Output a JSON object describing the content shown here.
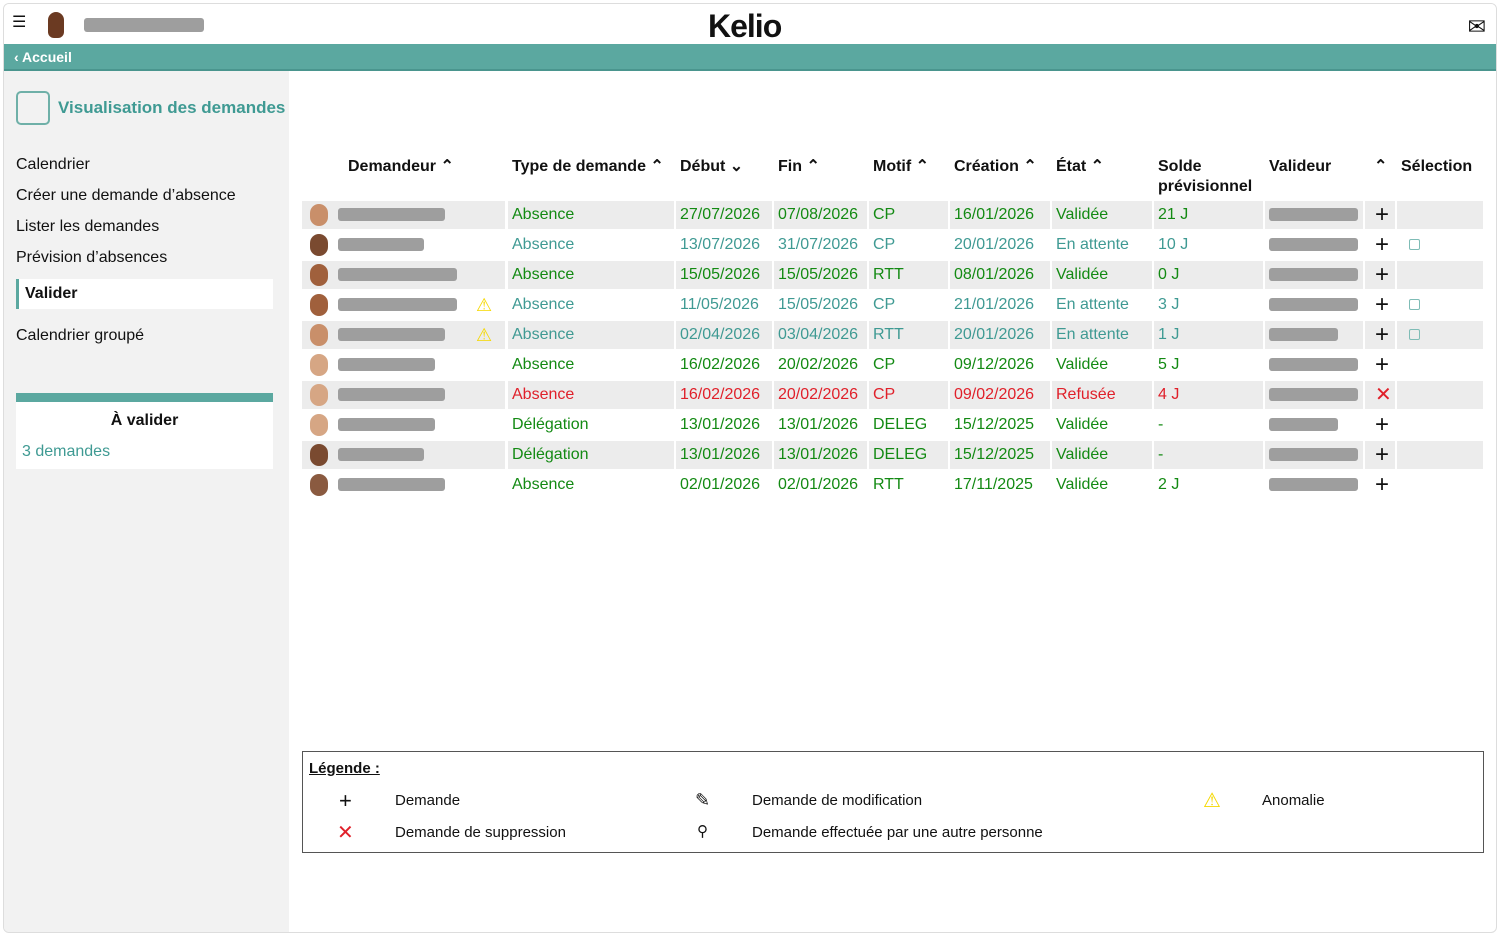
{
  "header": {
    "logo": "Kelio",
    "nav_back": "‹ Accueil"
  },
  "sidebar": {
    "title": "Visualisation des demandes",
    "items": [
      "Calendrier",
      "Créer une demande d’absence",
      "Lister les demandes",
      "Prévision d’absences",
      "Valider",
      "Calendrier groupé"
    ],
    "active": "Valider",
    "box_title": "À valider",
    "box_link": "3 demandes"
  },
  "table": {
    "headers": {
      "demandeur": "Demandeur ⌃",
      "type": "Type de demande ⌃",
      "debut": "Début ⌄",
      "fin": "Fin ⌃",
      "motif": "Motif ⌃",
      "creation": "Création ⌃",
      "etat": "État ⌃",
      "solde": "Solde prévisionnel",
      "valideur": "Valideur",
      "action": "⌃",
      "selection": "Sélection"
    },
    "rows": [
      {
        "type": "Absence",
        "debut": "27/07/2026",
        "fin": "07/08/2026",
        "motif": "CP",
        "creation": "16/01/2026",
        "etat": "Validée",
        "solde": "21 J",
        "action": "+",
        "status": "ok",
        "warn": false,
        "select": false
      },
      {
        "type": "Absence",
        "debut": "13/07/2026",
        "fin": "31/07/2026",
        "motif": "CP",
        "creation": "20/01/2026",
        "etat": "En attente",
        "solde": "10 J",
        "action": "+",
        "status": "pending",
        "warn": false,
        "select": true
      },
      {
        "type": "Absence",
        "debut": "15/05/2026",
        "fin": "15/05/2026",
        "motif": "RTT",
        "creation": "08/01/2026",
        "etat": "Validée",
        "solde": "0 J",
        "action": "+",
        "status": "ok",
        "warn": false,
        "select": false
      },
      {
        "type": "Absence",
        "debut": "11/05/2026",
        "fin": "15/05/2026",
        "motif": "CP",
        "creation": "21/01/2026",
        "etat": "En attente",
        "solde": "3 J",
        "action": "+",
        "status": "pending",
        "warn": true,
        "select": true
      },
      {
        "type": "Absence",
        "debut": "02/04/2026",
        "fin": "03/04/2026",
        "motif": "RTT",
        "creation": "20/01/2026",
        "etat": "En attente",
        "solde": "1 J",
        "action": "+",
        "status": "pending",
        "warn": true,
        "select": true
      },
      {
        "type": "Absence",
        "debut": "16/02/2026",
        "fin": "20/02/2026",
        "motif": "CP",
        "creation": "09/12/2026",
        "etat": "Validée",
        "solde": "5 J",
        "action": "+",
        "status": "ok",
        "warn": false,
        "select": false
      },
      {
        "type": "Absence",
        "debut": "16/02/2026",
        "fin": "20/02/2026",
        "motif": "CP",
        "creation": "09/02/2026",
        "etat": "Refusée",
        "solde": "4 J",
        "action": "✕",
        "status": "refused",
        "warn": false,
        "select": false
      },
      {
        "type": "Délégation",
        "debut": "13/01/2026",
        "fin": "13/01/2026",
        "motif": "DELEG",
        "creation": "15/12/2025",
        "etat": "Validée",
        "solde": "-",
        "action": "+",
        "status": "ok",
        "warn": false,
        "select": false
      },
      {
        "type": "Délégation",
        "debut": "13/01/2026",
        "fin": "13/01/2026",
        "motif": "DELEG",
        "creation": "15/12/2025",
        "etat": "Validée",
        "solde": "-",
        "action": "+",
        "status": "ok",
        "warn": false,
        "select": false
      },
      {
        "type": "Absence",
        "debut": "02/01/2026",
        "fin": "02/01/2026",
        "motif": "RTT",
        "creation": "17/11/2025",
        "etat": "Validée",
        "solde": "2 J",
        "action": "+",
        "status": "ok",
        "warn": false,
        "select": false
      }
    ]
  },
  "legend": {
    "title": "Légende :",
    "items": {
      "demande": "Demande",
      "suppression": "Demande de suppression",
      "modification": "Demande de modification",
      "autre": "Demande effectuée par une autre personne",
      "anomalie": "Anomalie"
    }
  },
  "colors": {
    "ok": "#138a13",
    "pending": "#3f9a93",
    "refused": "#e0202a",
    "accent": "#5ba8a0"
  }
}
